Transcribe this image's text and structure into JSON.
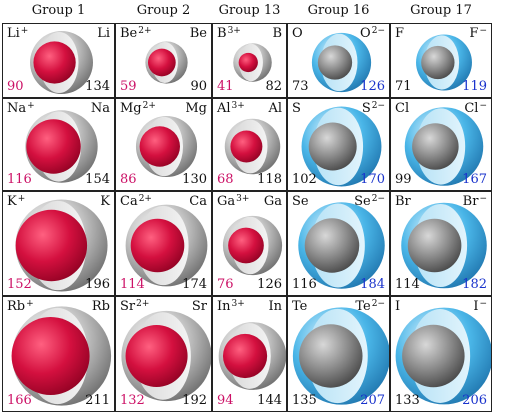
{
  "columns": [
    "Group 1",
    "Group 2",
    "Group 13",
    "Group 16",
    "Group 17"
  ],
  "rows": [
    [
      {
        "left": "Li",
        "charge": "+",
        "right": "Li",
        "r1": 90,
        "r2": 134,
        "type": "cation"
      },
      {
        "left": "Be",
        "charge": "2+",
        "right": "Be",
        "r1": 59,
        "r2": 90,
        "type": "cation"
      },
      {
        "left": "B",
        "charge": "3+",
        "right": "B",
        "r1": 41,
        "r2": 82,
        "type": "cation"
      },
      {
        "left": "O",
        "charge": "",
        "right": "O",
        "rcharge": "2−",
        "r1": 73,
        "r2": 126,
        "type": "anion"
      },
      {
        "left": "F",
        "charge": "",
        "right": "F",
        "rcharge": "−",
        "r1": 71,
        "r2": 119,
        "type": "anion"
      }
    ],
    [
      {
        "left": "Na",
        "charge": "+",
        "right": "Na",
        "r1": 116,
        "r2": 154,
        "type": "cation"
      },
      {
        "left": "Mg",
        "charge": "2+",
        "right": "Mg",
        "r1": 86,
        "r2": 130,
        "type": "cation"
      },
      {
        "left": "Al",
        "charge": "3+",
        "right": "Al",
        "r1": 68,
        "r2": 118,
        "type": "cation"
      },
      {
        "left": "S",
        "charge": "",
        "right": "S",
        "rcharge": "2−",
        "r1": 102,
        "r2": 170,
        "type": "anion"
      },
      {
        "left": "Cl",
        "charge": "",
        "right": "Cl",
        "rcharge": "−",
        "r1": 99,
        "r2": 167,
        "type": "anion"
      }
    ],
    [
      {
        "left": "K",
        "charge": "+",
        "right": "K",
        "r1": 152,
        "r2": 196,
        "type": "cation"
      },
      {
        "left": "Ca",
        "charge": "2+",
        "right": "Ca",
        "r1": 114,
        "r2": 174,
        "type": "cation"
      },
      {
        "left": "Ga",
        "charge": "3+",
        "right": "Ga",
        "r1": 76,
        "r2": 126,
        "type": "cation"
      },
      {
        "left": "Se",
        "charge": "",
        "right": "Se",
        "rcharge": "2−",
        "r1": 116,
        "r2": 184,
        "type": "anion"
      },
      {
        "left": "Br",
        "charge": "",
        "right": "Br",
        "rcharge": "−",
        "r1": 114,
        "r2": 182,
        "type": "anion"
      }
    ],
    [
      {
        "left": "Rb",
        "charge": "+",
        "right": "Rb",
        "r1": 166,
        "r2": 211,
        "type": "cation"
      },
      {
        "left": "Sr",
        "charge": "2+",
        "right": "Sr",
        "r1": 132,
        "r2": 192,
        "type": "cation"
      },
      {
        "left": "In",
        "charge": "3+",
        "right": "In",
        "r1": 94,
        "r2": 144,
        "type": "cation"
      },
      {
        "left": "Te",
        "charge": "",
        "right": "Te",
        "rcharge": "2−",
        "r1": 135,
        "r2": 207,
        "type": "anion"
      },
      {
        "left": "I",
        "charge": "",
        "right": "I",
        "rcharge": "−",
        "r1": 133,
        "r2": 206,
        "type": "anion"
      }
    ]
  ],
  "colors": {
    "cation_sphere": "#d4103f",
    "atom_sphere": "#9a9a9a",
    "anion_shell": "#4ab6e8",
    "cation_number": "#cc1166",
    "anion_number": "#1a33cc"
  }
}
